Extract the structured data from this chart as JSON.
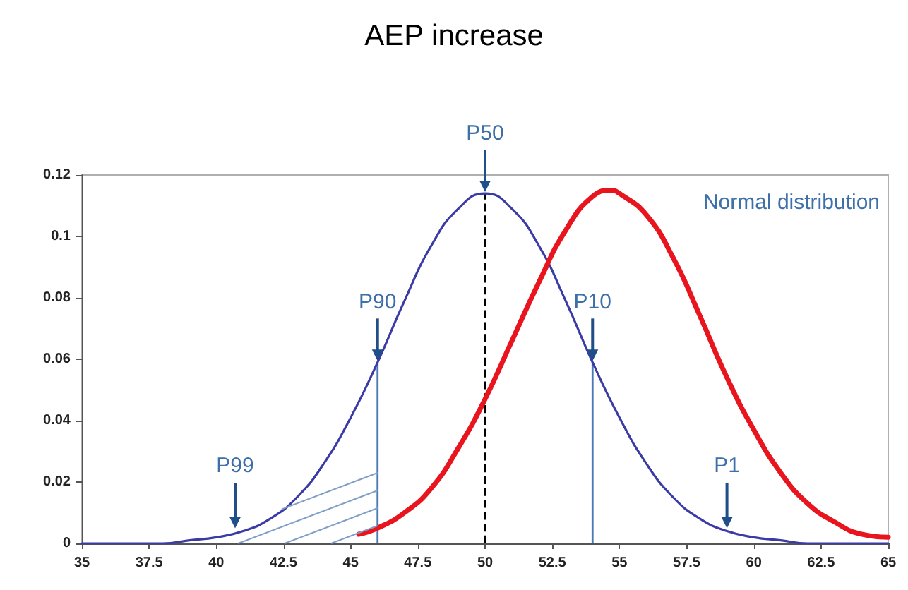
{
  "chart_data": {
    "type": "line",
    "title": "AEP increase",
    "xlim": [
      35,
      65
    ],
    "xticks": [
      35,
      37.5,
      40,
      42.5,
      45,
      47.5,
      50,
      52.5,
      55,
      57.5,
      60,
      62.5,
      65
    ],
    "ylim": [
      0,
      0.12
    ],
    "yticks": [
      0,
      0.02,
      0.04,
      0.06,
      0.08,
      0.1,
      0.12
    ],
    "grid": false,
    "marker": "none",
    "line_style": "solid",
    "series": [
      {
        "color": "#3b3ba6",
        "x": [
          35,
          36,
          37,
          38,
          39,
          40,
          41,
          42,
          43,
          44,
          45,
          46,
          47,
          48,
          49,
          50,
          51,
          52,
          53,
          54,
          55,
          56,
          57,
          58,
          59,
          60,
          61,
          62,
          63,
          64,
          65
        ],
        "values": [
          0,
          0,
          0,
          0,
          0.001,
          0.002,
          0.004,
          0.008,
          0.015,
          0.026,
          0.041,
          0.059,
          0.079,
          0.097,
          0.109,
          0.114,
          0.109,
          0.097,
          0.079,
          0.059,
          0.041,
          0.026,
          0.015,
          0.008,
          0.004,
          0.002,
          0.001,
          0,
          0,
          0,
          0
        ]
      },
      {
        "color": "#e8141e",
        "x": [
          45.3,
          46,
          47,
          48,
          49,
          50,
          51,
          52,
          53,
          54,
          54.7,
          55,
          56,
          57,
          58,
          59,
          60,
          61,
          62,
          63,
          64,
          65
        ],
        "values": [
          0.003,
          0.005,
          0.01,
          0.018,
          0.031,
          0.047,
          0.066,
          0.085,
          0.102,
          0.113,
          0.115,
          0.114,
          0.107,
          0.093,
          0.074,
          0.054,
          0.037,
          0.023,
          0.013,
          0.007,
          0.003,
          0.002
        ]
      }
    ],
    "ref_lines": [
      {
        "axis": "x",
        "value": 50,
        "label": "P50",
        "color": "#000000",
        "line_style": "dashed"
      },
      {
        "axis": "x",
        "value": 46,
        "label": "P90",
        "color": "#4a7ab5",
        "line_style": "solid"
      },
      {
        "axis": "x",
        "value": 54,
        "label": "P10",
        "color": "#4a7ab5",
        "line_style": "solid"
      }
    ],
    "annotations": [
      {
        "text": "P99",
        "x": 40.7,
        "y": 0.004
      },
      {
        "text": "P1",
        "x": 59,
        "y": 0.004
      },
      "Normal distribution"
    ]
  }
}
